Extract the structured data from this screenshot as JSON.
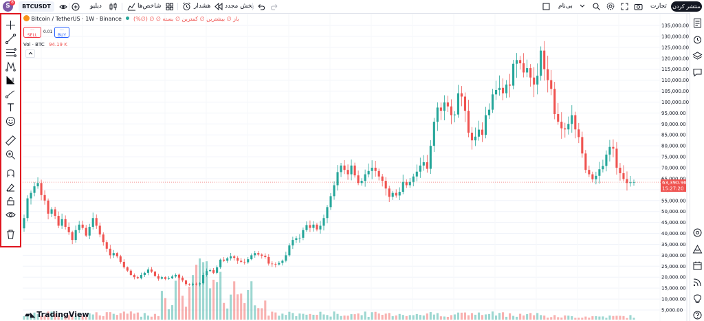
{
  "topbar": {
    "symbol": "BTCUSDT",
    "avatar_letter": "S",
    "avatar_badge": "8",
    "publish": "منتشر کردن",
    "trade": "تجارت",
    "search_label": "بی‌نام",
    "indicators": "شاخص‌ها",
    "alert": "هشدار",
    "replay": "پخش مجدد",
    "dev": "دیلیو"
  },
  "legend": {
    "pair": "Bitcoin / TetherUS · 1W · Binance",
    "ohlc": "باز ∅ بیشترین ∅ کمترین ∅ بسته ∅ ∅ (∅%)",
    "sell_price": "···",
    "sell_label": "SELL",
    "spread": "0.01",
    "buy_price": "···",
    "buy_label": "BUY",
    "vol_label": "Vol · BTC",
    "vol_value": "94.19 K"
  },
  "price_axis": {
    "labels": [
      "135,000.00",
      "130,000.00",
      "125,000.00",
      "120,000.00",
      "115,000.00",
      "110,000.00",
      "105,000.00",
      "100,000.00",
      "95,000.00",
      "90,000.00",
      "85,000.00",
      "80,000.00",
      "75,000.00",
      "70,000.00",
      "65,000.00",
      "60,000.00",
      "55,000.00",
      "50,000.00",
      "45,000.00",
      "40,000.00",
      "35,000.00",
      "30,000.00",
      "25,000.00",
      "20,000.00",
      "15,000.00",
      "10,000.00",
      "5,000.00"
    ],
    "current_price": "63,390.96",
    "countdown": "15:27:20"
  },
  "branding": {
    "logo": "TradingView"
  },
  "colors": {
    "up": "#26a69a",
    "down": "#ef5350",
    "highlight": "#e0141e",
    "ink": "#131722"
  },
  "chart_data": {
    "type": "candlestick",
    "title": "Bitcoin / TetherUS · 1W · Binance",
    "ylim": [
      5000,
      138000
    ],
    "current_price": 63390.96,
    "closes": [
      47000,
      56000,
      58500,
      61500,
      63000,
      57500,
      55000,
      49000,
      51000,
      48000,
      43500,
      46500,
      43000,
      40500,
      37000,
      41500,
      44000,
      42500,
      39000,
      43000,
      47000,
      43500,
      39500,
      36000,
      33000,
      30000,
      31000,
      29500,
      27000,
      24500,
      23000,
      21000,
      20000,
      19500,
      21000,
      22000,
      23500,
      22500,
      20500,
      19300,
      20000,
      19200,
      19500,
      20300,
      21000,
      19800,
      18500,
      16800,
      16500,
      17000,
      16700,
      17200,
      21000,
      22800,
      23200,
      22000,
      24500,
      28000,
      27500,
      28600,
      29500,
      28800,
      27500,
      27000,
      26800,
      28200,
      30000,
      31000,
      30300,
      29800,
      29200,
      26200,
      26000,
      25800,
      26500,
      27500,
      30000,
      34500,
      37000,
      37800,
      38000,
      41500,
      43800,
      42500,
      44000,
      41800,
      43500,
      47000,
      52000,
      57000,
      62000,
      68000,
      71000,
      69000,
      67000,
      71000,
      66500,
      63000,
      64000,
      67000,
      68500,
      70000,
      68500,
      66000,
      64000,
      60500,
      56700,
      58500,
      57300,
      59000,
      63500,
      62000,
      63500,
      66000,
      68200,
      71000,
      72500,
      69500,
      80000,
      91000,
      97500,
      96000,
      99800,
      98000,
      94000,
      94300,
      104000,
      102500,
      96000,
      86000,
      82500,
      84200,
      87400,
      85000,
      94000,
      96500,
      103500,
      105500,
      106500,
      104000,
      108000,
      107500,
      117500,
      119200,
      117700,
      113500,
      115500,
      111200,
      108000,
      112000,
      123500,
      115000,
      110000,
      106000,
      94500,
      91000,
      88000,
      87500,
      90000,
      94000,
      87500,
      84000,
      76500,
      69000,
      67000,
      64700,
      66300,
      69300,
      70800,
      76000,
      79500,
      78700,
      70000,
      67500,
      64800,
      63000,
      63300,
      63400
    ]
  }
}
